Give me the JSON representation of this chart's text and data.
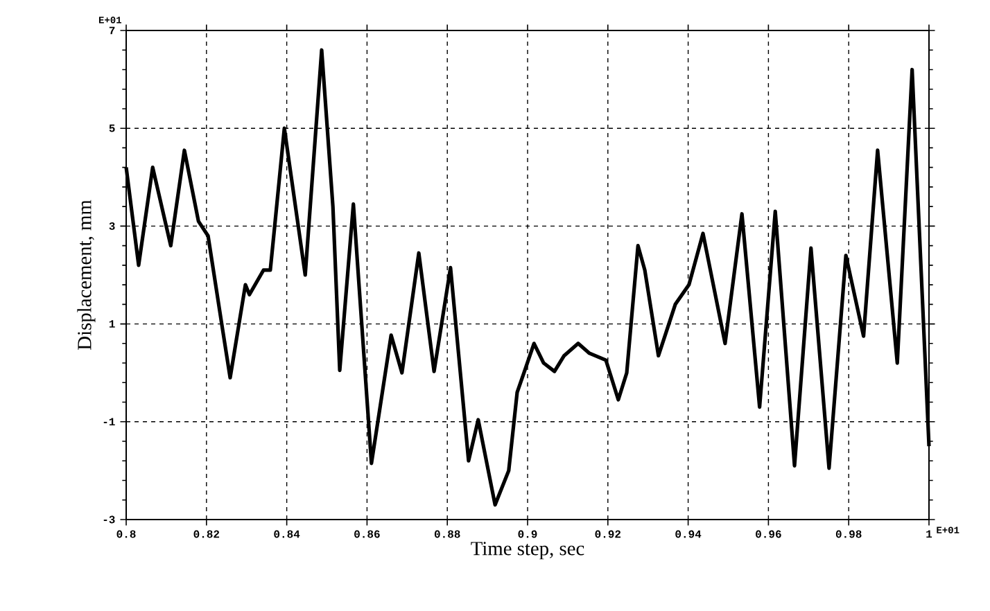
{
  "chart_data": {
    "type": "line",
    "xlabel": "Time step,  sec",
    "ylabel": "Displacement,  mm",
    "annotations": [
      "E+01",
      "E+01"
    ],
    "xlim": [
      0.8,
      1.0
    ],
    "xticks": [
      0.8,
      0.82,
      0.84,
      0.86,
      0.88,
      0.9,
      0.92,
      0.94,
      0.96,
      0.98,
      1
    ],
    "ylim": [
      -3,
      7
    ],
    "yticks": [
      -3,
      -1,
      1,
      3,
      5,
      7
    ],
    "grid": true,
    "series": [
      {
        "color": "#000000",
        "x": [
          0.8,
          0.8031,
          0.8066,
          0.8111,
          0.8145,
          0.818,
          0.8204,
          0.8238,
          0.8259,
          0.8297,
          0.8307,
          0.8342,
          0.8359,
          0.837,
          0.8394,
          0.8446,
          0.8487,
          0.8515,
          0.8532,
          0.8566,
          0.8611,
          0.866,
          0.8687,
          0.8729,
          0.8767,
          0.8808,
          0.8853,
          0.8877,
          0.8919,
          0.8953,
          0.8974,
          0.8991,
          0.9016,
          0.904,
          0.9067,
          0.9091,
          0.9126,
          0.9154,
          0.9195,
          0.9226,
          0.9247,
          0.9275,
          0.9292,
          0.9326,
          0.9368,
          0.9402,
          0.9437,
          0.9492,
          0.9534,
          0.9578,
          0.9617,
          0.9665,
          0.9706,
          0.9751,
          0.9793,
          0.9837,
          0.9872,
          0.9921,
          0.9958,
          1.0
        ],
        "values": [
          4.2,
          2.2,
          4.2,
          2.6,
          4.55,
          3.1,
          2.8,
          1.0,
          -0.1,
          1.8,
          1.6,
          2.1,
          2.1,
          3.0,
          5.0,
          2.0,
          6.6,
          3.4,
          0.05,
          3.45,
          -1.85,
          0.77,
          0.0,
          2.45,
          0.03,
          2.15,
          -1.8,
          -0.96,
          -2.7,
          -2.0,
          -0.4,
          0.0,
          0.6,
          0.2,
          0.03,
          0.35,
          0.6,
          0.4,
          0.26,
          -0.55,
          0.0,
          2.6,
          2.1,
          0.35,
          1.4,
          1.8,
          2.85,
          0.6,
          3.25,
          -0.7,
          3.3,
          -1.9,
          2.55,
          -1.95,
          2.4,
          0.75,
          4.55,
          0.2,
          6.2,
          -1.5
        ]
      }
    ]
  }
}
